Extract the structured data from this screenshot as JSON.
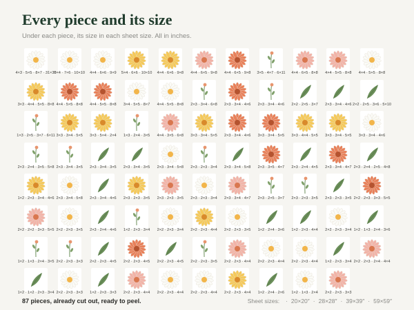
{
  "header": {
    "title": "Every piece and its size",
    "subtitle": "Under each piece, its size in each sheet size. All in inches."
  },
  "pieces": [
    "4×3 · 5×5 · 8×7 · 31×30",
    "5×4 · 7×6 · 10×10",
    "4×4 · 6×6 · 9×9",
    "5×4 · 6×6 · 10×10",
    "4×4 · 6×6 · 9×8",
    "4×4 · 6×5 · 9×8",
    "4×4 · 6×5 · 9×8",
    "3×5 · 4×7 · 6×11",
    "4×4 · 6×5 · 8×8",
    "4×4 · 5×5 · 8×8",
    "4×4 · 5×5 · 8×8",
    "3×3 · 4×4 · 5×5 · 8×8",
    "4×4 · 5×5 · 8×8",
    "4×4 · 5×5 · 8×8",
    "3×4 · 5×5 · 8×7",
    "4×4 · 5×5 · 8×8",
    "2×3 · 3×4 · 6×8",
    "2×3 · 3×4 · 4×6",
    "2×3 · 3×4 · 4×6",
    "2×2 · 2×5 · 3×7",
    "2×3 · 3×4 · 4×6",
    "2×2 · 2×5 · 3×6 · 5×10",
    "1×3 · 2×5 · 3×7 · 6×11",
    "3×3 · 3×4 · 5×5",
    "3×3 · 5×4 · 2×4",
    "1×3 · 2×4 · 3×5",
    "4×4 · 3×5 · 6×8",
    "3×3 · 3×4 · 5×5",
    "2×3 · 3×4 · 4×6",
    "3×3 · 3×4 · 5×5",
    "3×3 · 4×4 · 5×5",
    "3×3 · 3×4 · 5×5",
    "3×3 · 3×4 · 4×6",
    "2×3 · 2×4 · 3×5 · 5×8",
    "2×3 · 3×4 · 3×5",
    "2×3 · 3×4 · 3×5",
    "2×3 · 3×4 · 3×5",
    "2×3 · 3×4 · 5×8",
    "2×3 · 2×3 · 3×4",
    "2×3 · 3×4 · 5×8",
    "2×3 · 3×5 · 4×7",
    "2×3 · 2×4 · 4×5",
    "2×3 · 3×4 · 4×7",
    "2×3 · 2×4 · 2×5 · 4×8",
    "1×2 · 2×3 · 3×4 · 4×6",
    "2×3 · 3×4 · 5×8",
    "2×3 · 3×4 · 4×6",
    "2×3 · 2×3 · 3×5",
    "2×3 · 2×3 · 3×5",
    "2×3 · 2×3 · 3×4",
    "2×3 · 3×4 · 4×7",
    "2×3 · 2×5 · 3×7",
    "2×3 · 2×3 · 3×5",
    "2×3 · 2×3 · 3×5",
    "2×2 · 2×3 · 3×3 · 5×5",
    "2×2 · 2×2 · 3×3 · 5×5",
    "2×2 · 2×3 · 3×5",
    "2×3 · 2×4 · 4×6",
    "1×2 · 2×3 · 3×4",
    "2×2 · 2×3 · 3×4",
    "2×2 · 2×3 · 4×4",
    "2×2 · 2×3 · 3×5",
    "1×2 · 2×4 · 3×6",
    "1×2 · 2×3 · 4×4",
    "2×2 · 2×3 · 3×4",
    "1×2 · 1×3 · 2×4 · 3×6",
    "1×2 · 1×3 · 2×4 · 3×5",
    "2×2 · 2×3 · 3×3",
    "2×2 · 2×3 · 4×5",
    "2×2 · 2×3 · 4×5",
    "2×2 · 2×3 · 4×5",
    "2×2 · 2×3 · 3×5",
    "2×2 · 2×3 · 4×4",
    "2×2 · 2×3 · 4×4",
    "2×2 · 2×3 · 4×4",
    "1×2 · 2×3 · 3×4",
    "2×2 · 2×3 · 2×4 · 4×4",
    "1×2 · 1×2 · 2×3 · 3×4",
    "2×2 · 2×3 · 3×3",
    "1×2 · 2×3 · 3×3",
    "2×2 · 2×3 · 4×4",
    "2×2 · 2×3 · 4×4",
    "2×2 · 2×3 · 4×4",
    "2×2 · 2×3 · 4×4",
    "1×2 · 2×4 · 2×6",
    "1×2 · 1×3 · 2×4",
    "2×2 · 2×3 · 3×3"
  ],
  "footer": {
    "note": "87 pieces, already cut out, ready to peel.",
    "sheet_label": "Sheet sizes:",
    "sheet_sizes": [
      "20×20″",
      "28×28″",
      "39×39″",
      "59×59″"
    ]
  }
}
